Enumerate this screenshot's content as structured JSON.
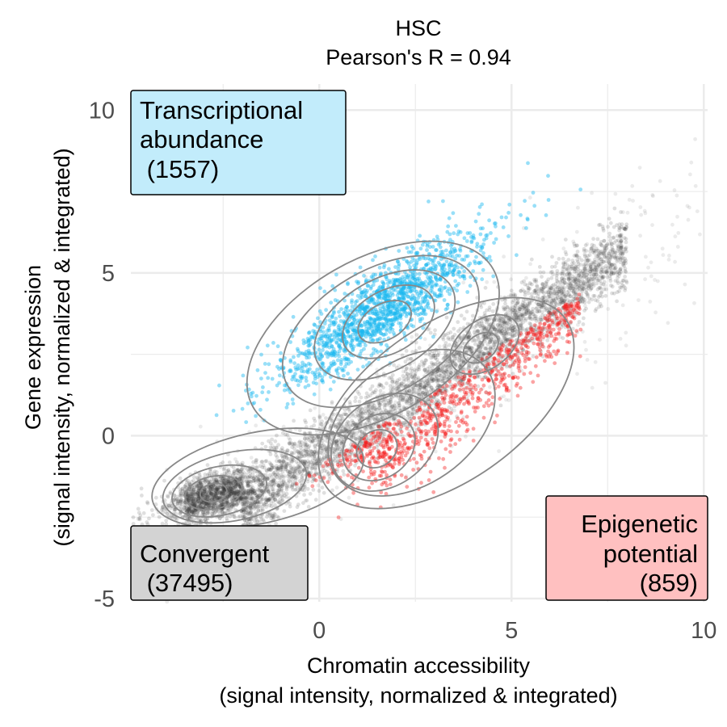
{
  "chart_data": {
    "type": "scatter",
    "title": "HSC",
    "subtitle": "Pearson's R = 0.94",
    "xlabel": "Chromatin accessibility",
    "xlabel_sub": "(signal intensity, normalized & integrated)",
    "ylabel": "Gene expression",
    "ylabel_sub": "(signal intensity, normalized & integrated)",
    "xlim": [
      -4.9,
      10.1
    ],
    "ylim": [
      -5.1,
      10.8
    ],
    "xticks": [
      0,
      5,
      10
    ],
    "xtick_labels": [
      "0",
      "5",
      "10"
    ],
    "yticks": [
      -5,
      0,
      5,
      10
    ],
    "ytick_labels": [
      "-5",
      "0",
      "5",
      "10"
    ],
    "grid": true,
    "colors": {
      "convergent": "#3a3a3a",
      "transcriptional": "#1ab8f0",
      "epigenetic": "#f51a1a",
      "contour": "#888888",
      "grid": "#ebebeb",
      "box_transcriptional": "#c2ecfb",
      "box_convergent": "#d3d3d3",
      "box_epigenetic": "#ffc0c0"
    },
    "series": [
      {
        "name": "Convergent",
        "count": 37495
      },
      {
        "name": "Transcriptional abundance",
        "count": 1557
      },
      {
        "name": "Epigenetic potential",
        "count": 859
      }
    ],
    "annotations": {
      "transcriptional": [
        "Transcriptional",
        "abundance",
        " (1557)"
      ],
      "convergent": [
        "Convergent",
        " (37495)"
      ],
      "epigenetic": [
        "Epigenetic",
        "potential",
        "(859)"
      ]
    }
  }
}
